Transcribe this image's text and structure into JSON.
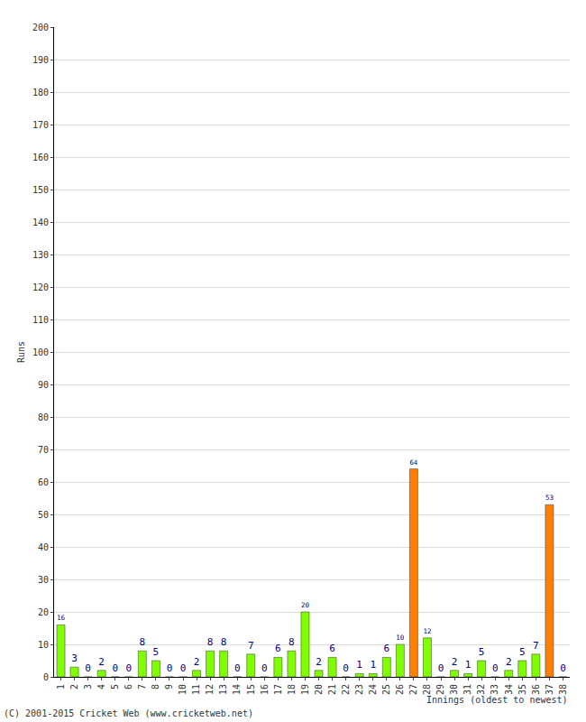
{
  "chart_data": {
    "type": "bar",
    "x_label": "Innings (oldest to newest)",
    "y_label": "Runs",
    "annotations": [
      "(C) 2001-2015 Cricket Web (www.cricketweb.net)"
    ],
    "categories": [
      "1",
      "2",
      "3",
      "4",
      "5",
      "6",
      "7",
      "8",
      "9",
      "10",
      "11",
      "12",
      "13",
      "14",
      "15",
      "16",
      "17",
      "18",
      "19",
      "20",
      "21",
      "22",
      "23",
      "24",
      "25",
      "26",
      "27",
      "28",
      "29",
      "30",
      "31",
      "32",
      "33",
      "34",
      "35",
      "36",
      "37",
      "38"
    ],
    "values": [
      16,
      3,
      0,
      2,
      0,
      0,
      8,
      5,
      0,
      0,
      2,
      8,
      8,
      0,
      7,
      0,
      6,
      8,
      20,
      2,
      6,
      0,
      1,
      1,
      6,
      10,
      64,
      12,
      0,
      2,
      1,
      5,
      0,
      2,
      5,
      7,
      53,
      0
    ],
    "colors": [
      "#80ff00",
      "#80ff00",
      "#80ff00",
      "#80ff00",
      "#80ff00",
      "#80ff00",
      "#80ff00",
      "#80ff00",
      "#80ff00",
      "#80ff00",
      "#80ff00",
      "#80ff00",
      "#80ff00",
      "#80ff00",
      "#80ff00",
      "#80ff00",
      "#80ff00",
      "#80ff00",
      "#80ff00",
      "#80ff00",
      "#80ff00",
      "#80ff00",
      "#80ff00",
      "#80ff00",
      "#80ff00",
      "#80ff00",
      "#ff8000",
      "#80ff00",
      "#80ff00",
      "#80ff00",
      "#80ff00",
      "#80ff00",
      "#80ff00",
      "#80ff00",
      "#80ff00",
      "#80ff00",
      "#ff8000",
      "#80ff00"
    ],
    "ylim": [
      0,
      200
    ],
    "yticks": [
      0,
      10,
      20,
      30,
      40,
      50,
      60,
      70,
      80,
      90,
      100,
      110,
      120,
      130,
      140,
      150,
      160,
      170,
      180,
      190,
      200
    ],
    "grid": true,
    "data_labels": true
  }
}
